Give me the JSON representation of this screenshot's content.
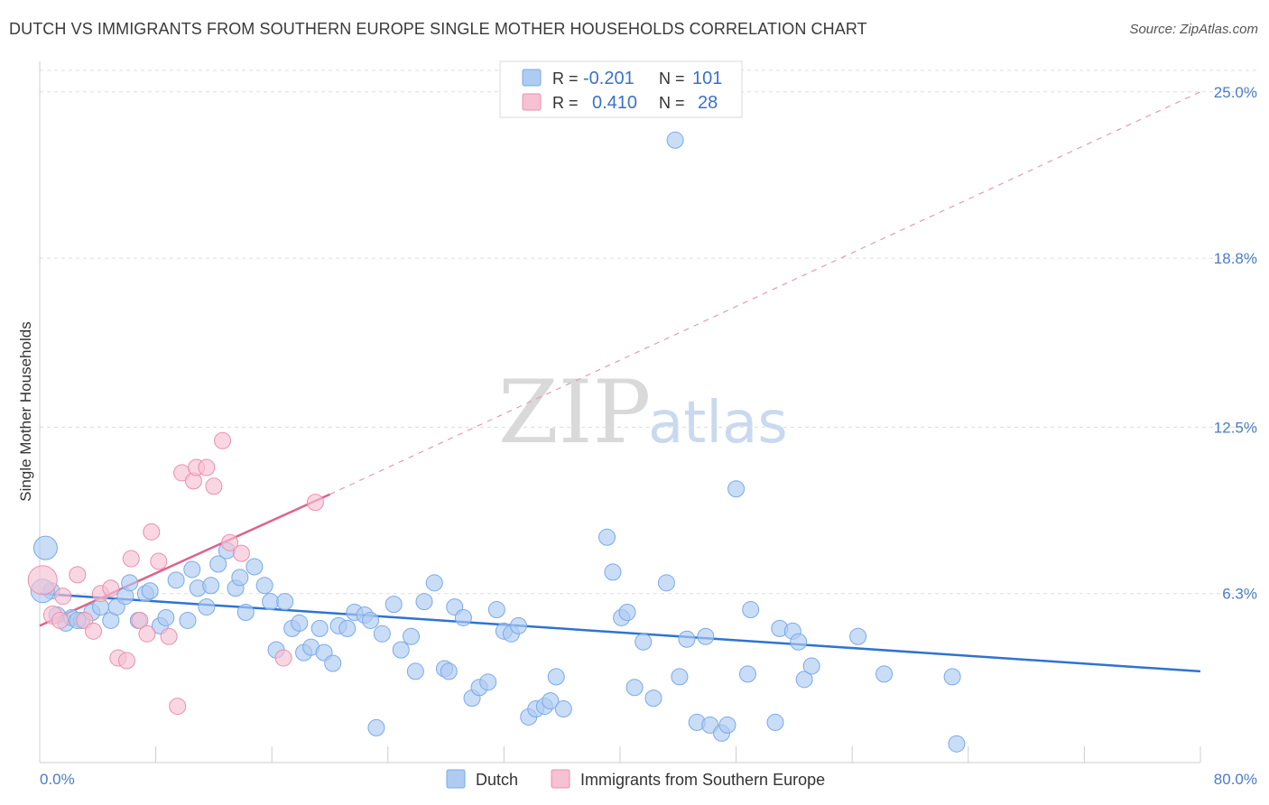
{
  "title": "DUTCH VS IMMIGRANTS FROM SOUTHERN EUROPE SINGLE MOTHER HOUSEHOLDS CORRELATION CHART",
  "source": "Source: ZipAtlas.com",
  "watermark": {
    "zip": "ZIP",
    "atlas": "atlas"
  },
  "chart_data": {
    "type": "scatter",
    "title": "DUTCH VS IMMIGRANTS FROM SOUTHERN EUROPE SINGLE MOTHER HOUSEHOLDS CORRELATION CHART",
    "xlabel": "",
    "ylabel": "Single Mother Households",
    "xlim": [
      0,
      80
    ],
    "ylim": [
      0,
      25.8
    ],
    "x_tick_labels": {
      "min": "0.0%",
      "max": "80.0%"
    },
    "y_ticks": [
      {
        "value": 6.3,
        "label": "6.3%"
      },
      {
        "value": 12.5,
        "label": "12.5%"
      },
      {
        "value": 18.8,
        "label": "18.8%"
      },
      {
        "value": 25.0,
        "label": "25.0%"
      }
    ],
    "legend": {
      "r_label": "R =",
      "n_label": "N =",
      "entries": [
        {
          "name": "Dutch",
          "r": "-0.201",
          "n": "101",
          "color": "#7aaae8",
          "fill": "#aecbf2"
        },
        {
          "name": "Immigrants from Southern Europe",
          "r": "0.410",
          "n": "28",
          "color": "#eb8fae",
          "fill": "#f6c1d2"
        }
      ]
    },
    "series": [
      {
        "name": "Dutch",
        "color": "#7aaae8",
        "trend": {
          "x": [
            0,
            80
          ],
          "y": [
            6.3,
            3.4
          ],
          "color": "#2f73d1"
        },
        "points": [
          [
            0.4,
            8.0
          ],
          [
            0.8,
            6.4
          ],
          [
            1.2,
            5.5
          ],
          [
            1.8,
            5.2
          ],
          [
            2.2,
            5.4
          ],
          [
            2.9,
            5.3
          ],
          [
            3.6,
            5.6
          ],
          [
            4.2,
            5.8
          ],
          [
            4.9,
            5.3
          ],
          [
            5.3,
            5.8
          ],
          [
            5.9,
            6.2
          ],
          [
            6.2,
            6.7
          ],
          [
            6.8,
            5.3
          ],
          [
            7.3,
            6.3
          ],
          [
            7.6,
            6.4
          ],
          [
            8.3,
            5.1
          ],
          [
            8.7,
            5.4
          ],
          [
            9.4,
            6.8
          ],
          [
            10.2,
            5.3
          ],
          [
            10.5,
            7.2
          ],
          [
            10.9,
            6.5
          ],
          [
            11.5,
            5.8
          ],
          [
            11.8,
            6.6
          ],
          [
            12.3,
            7.4
          ],
          [
            12.9,
            7.9
          ],
          [
            13.5,
            6.5
          ],
          [
            13.8,
            6.9
          ],
          [
            14.2,
            5.6
          ],
          [
            14.8,
            7.3
          ],
          [
            15.5,
            6.6
          ],
          [
            15.9,
            6.0
          ],
          [
            16.3,
            4.2
          ],
          [
            16.9,
            6.0
          ],
          [
            17.4,
            5.0
          ],
          [
            17.9,
            5.2
          ],
          [
            18.2,
            4.1
          ],
          [
            18.7,
            4.3
          ],
          [
            19.3,
            5.0
          ],
          [
            19.6,
            4.1
          ],
          [
            20.2,
            3.7
          ],
          [
            20.6,
            5.1
          ],
          [
            21.2,
            5.0
          ],
          [
            21.7,
            5.6
          ],
          [
            22.4,
            5.5
          ],
          [
            22.8,
            5.3
          ],
          [
            23.2,
            1.3
          ],
          [
            23.6,
            4.8
          ],
          [
            24.4,
            5.9
          ],
          [
            24.9,
            4.2
          ],
          [
            25.6,
            4.7
          ],
          [
            25.9,
            3.4
          ],
          [
            26.5,
            6.0
          ],
          [
            27.2,
            6.7
          ],
          [
            27.9,
            3.5
          ],
          [
            28.2,
            3.4
          ],
          [
            28.6,
            5.8
          ],
          [
            29.2,
            5.4
          ],
          [
            29.8,
            2.4
          ],
          [
            30.3,
            2.8
          ],
          [
            30.9,
            3.0
          ],
          [
            31.5,
            5.7
          ],
          [
            32.0,
            4.9
          ],
          [
            32.5,
            4.8
          ],
          [
            33.0,
            5.1
          ],
          [
            33.7,
            1.7
          ],
          [
            34.2,
            2.0
          ],
          [
            34.8,
            2.1
          ],
          [
            35.2,
            2.3
          ],
          [
            35.6,
            3.2
          ],
          [
            36.1,
            2.0
          ],
          [
            39.1,
            8.4
          ],
          [
            39.5,
            7.1
          ],
          [
            40.1,
            5.4
          ],
          [
            40.5,
            5.6
          ],
          [
            41.0,
            2.8
          ],
          [
            41.6,
            4.5
          ],
          [
            42.3,
            2.4
          ],
          [
            43.2,
            6.7
          ],
          [
            43.8,
            23.2
          ],
          [
            44.1,
            3.2
          ],
          [
            44.6,
            4.6
          ],
          [
            45.3,
            1.5
          ],
          [
            45.9,
            4.7
          ],
          [
            46.2,
            1.4
          ],
          [
            47.0,
            1.1
          ],
          [
            47.4,
            1.4
          ],
          [
            48.0,
            10.2
          ],
          [
            48.8,
            3.3
          ],
          [
            49.0,
            5.7
          ],
          [
            50.7,
            1.5
          ],
          [
            51.0,
            5.0
          ],
          [
            51.9,
            4.9
          ],
          [
            52.3,
            4.5
          ],
          [
            52.7,
            3.1
          ],
          [
            53.2,
            3.6
          ],
          [
            56.4,
            4.7
          ],
          [
            58.2,
            3.3
          ],
          [
            62.9,
            3.2
          ],
          [
            63.2,
            0.7
          ],
          [
            0.2,
            6.4
          ],
          [
            2.6,
            5.3
          ]
        ]
      },
      {
        "name": "Immigrants from Southern Europe",
        "color": "#eb8fae",
        "trend": {
          "x": [
            0,
            20
          ],
          "y": [
            5.1,
            10.0
          ],
          "color": "#e0618c"
        },
        "trend_dashed": {
          "x": [
            20,
            80
          ],
          "y": [
            10.0,
            25.0
          ],
          "color": "#e59ab4"
        },
        "points": [
          [
            0.2,
            6.8
          ],
          [
            0.9,
            5.5
          ],
          [
            1.4,
            5.3
          ],
          [
            2.6,
            7.0
          ],
          [
            3.1,
            5.3
          ],
          [
            3.7,
            4.9
          ],
          [
            4.2,
            6.3
          ],
          [
            4.9,
            6.5
          ],
          [
            5.4,
            3.9
          ],
          [
            6.0,
            3.8
          ],
          [
            6.3,
            7.6
          ],
          [
            6.9,
            5.3
          ],
          [
            7.4,
            4.8
          ],
          [
            7.7,
            8.6
          ],
          [
            8.2,
            7.5
          ],
          [
            8.9,
            4.7
          ],
          [
            9.5,
            2.1
          ],
          [
            9.8,
            10.8
          ],
          [
            10.6,
            10.5
          ],
          [
            10.8,
            11.0
          ],
          [
            11.5,
            11.0
          ],
          [
            12.0,
            10.3
          ],
          [
            12.6,
            12.0
          ],
          [
            13.1,
            8.2
          ],
          [
            13.9,
            7.8
          ],
          [
            16.8,
            3.9
          ],
          [
            1.6,
            6.2
          ],
          [
            19.0,
            9.7
          ]
        ]
      }
    ]
  },
  "bottom_legend": {
    "dutch": "Dutch",
    "immigrants": "Immigrants from Southern Europe"
  }
}
